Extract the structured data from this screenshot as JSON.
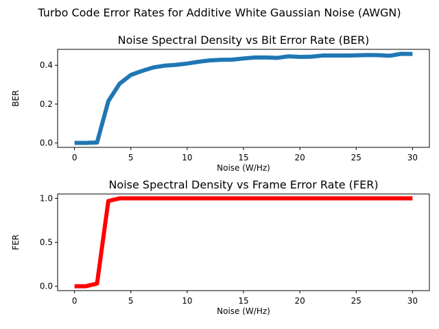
{
  "figure_title": "Turbo Code Error Rates for Additive White Gaussian Noise (AWGN)",
  "chart_data": [
    {
      "type": "line",
      "title": "Noise Spectral Density vs Bit Error Rate (BER)",
      "xlabel": "Noise (W/Hz)",
      "ylabel": "BER",
      "xlim": [
        -1.5,
        31.5
      ],
      "ylim": [
        -0.023,
        0.482
      ],
      "xticks": [
        0,
        5,
        10,
        15,
        20,
        25,
        30
      ],
      "xtick_labels": [
        "0",
        "5",
        "10",
        "15",
        "20",
        "25",
        "30"
      ],
      "yticks": [
        0.0,
        0.2,
        0.4
      ],
      "ytick_labels": [
        "0.0",
        "0.2",
        "0.4"
      ],
      "grid": false,
      "color": "#1f77b4",
      "series": [
        {
          "x": [
            0,
            1,
            2,
            3,
            4,
            5,
            6,
            7,
            8,
            9,
            10,
            11,
            12,
            13,
            14,
            15,
            16,
            17,
            18,
            19,
            20,
            21,
            22,
            23,
            24,
            25,
            26,
            27,
            28,
            29,
            30
          ],
          "values": [
            0.0,
            0.0,
            0.002,
            0.215,
            0.305,
            0.35,
            0.371,
            0.389,
            0.398,
            0.402,
            0.409,
            0.418,
            0.425,
            0.428,
            0.429,
            0.435,
            0.44,
            0.44,
            0.438,
            0.446,
            0.443,
            0.444,
            0.45,
            0.45,
            0.45,
            0.451,
            0.453,
            0.452,
            0.449,
            0.459,
            0.458
          ]
        }
      ]
    },
    {
      "type": "line",
      "title": "Noise Spectral Density vs Frame Error Rate (FER)",
      "xlabel": "Noise (W/Hz)",
      "ylabel": "FER",
      "xlim": [
        -1.5,
        31.5
      ],
      "ylim": [
        -0.05,
        1.05
      ],
      "xticks": [
        0,
        5,
        10,
        15,
        20,
        25,
        30
      ],
      "xtick_labels": [
        "0",
        "5",
        "10",
        "15",
        "20",
        "25",
        "30"
      ],
      "yticks": [
        0.0,
        0.5,
        1.0
      ],
      "ytick_labels": [
        "0.0",
        "0.5",
        "1.0"
      ],
      "grid": false,
      "color": "#ff0000",
      "series": [
        {
          "x": [
            0,
            1,
            2,
            3,
            4,
            5,
            6,
            7,
            8,
            9,
            10,
            11,
            12,
            13,
            14,
            15,
            16,
            17,
            18,
            19,
            20,
            21,
            22,
            23,
            24,
            25,
            26,
            27,
            28,
            29,
            30
          ],
          "values": [
            0.0,
            0.0,
            0.03,
            0.97,
            1.0,
            1.0,
            1.0,
            1.0,
            1.0,
            1.0,
            1.0,
            1.0,
            1.0,
            1.0,
            1.0,
            1.0,
            1.0,
            1.0,
            1.0,
            1.0,
            1.0,
            1.0,
            1.0,
            1.0,
            1.0,
            1.0,
            1.0,
            1.0,
            1.0,
            1.0,
            1.0
          ]
        }
      ]
    }
  ]
}
